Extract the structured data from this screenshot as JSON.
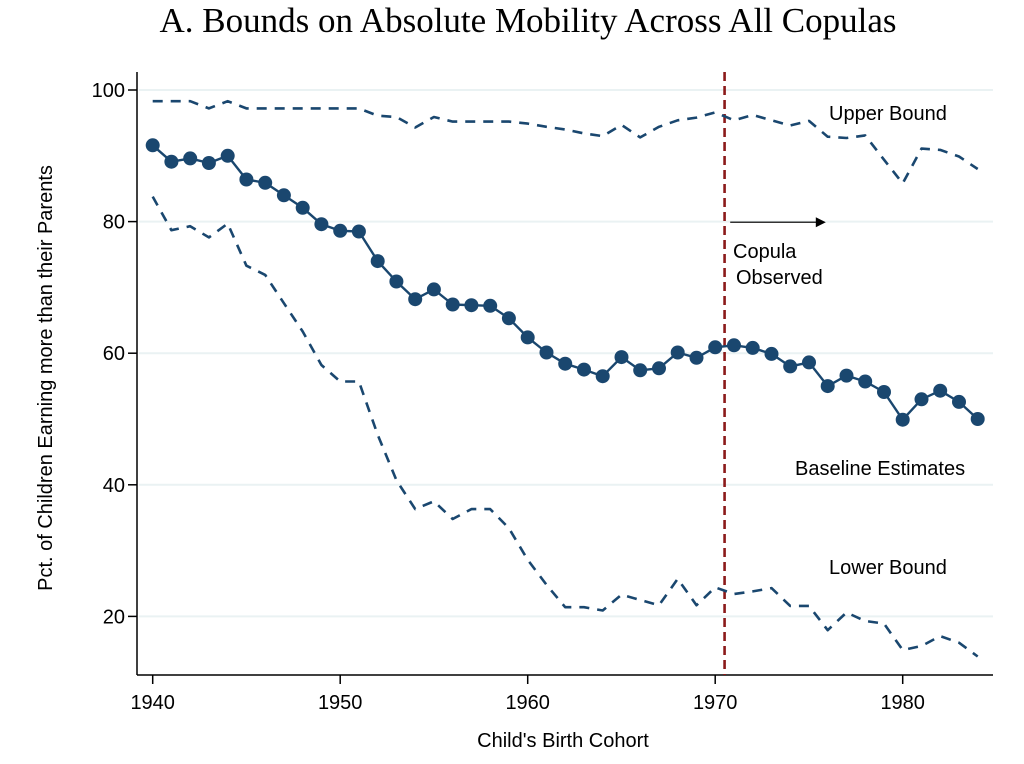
{
  "chart_data": {
    "type": "line",
    "title": "A. Bounds on Absolute Mobility Across All Copulas",
    "xlabel": "Child's Birth Cohort",
    "ylabel": "Pct. of Children Earning more than their Parents",
    "xlim": [
      1939.2,
      1985
    ],
    "ylim": [
      11,
      102.5
    ],
    "x_ticks": [
      1940,
      1950,
      1960,
      1970,
      1980
    ],
    "y_ticks": [
      20,
      40,
      60,
      80,
      100
    ],
    "grid": "horizontal",
    "x": [
      1940,
      1941,
      1942,
      1943,
      1944,
      1945,
      1946,
      1947,
      1948,
      1949,
      1950,
      1951,
      1952,
      1953,
      1954,
      1955,
      1956,
      1957,
      1958,
      1959,
      1960,
      1961,
      1962,
      1963,
      1964,
      1965,
      1966,
      1967,
      1968,
      1969,
      1970,
      1971,
      1972,
      1973,
      1974,
      1975,
      1976,
      1977,
      1978,
      1979,
      1980,
      1981,
      1982,
      1983,
      1984
    ],
    "series": [
      {
        "name": "Upper Bound",
        "style": "dashed",
        "color": "#1a476f",
        "values": [
          98.3,
          98.3,
          98.3,
          97.2,
          98.3,
          97.2,
          97.2,
          97.2,
          97.2,
          97.2,
          97.2,
          97.2,
          96.1,
          95.9,
          94.3,
          95.9,
          95.2,
          95.2,
          95.2,
          95.2,
          94.9,
          94.4,
          94.0,
          93.4,
          93.0,
          94.7,
          92.8,
          94.4,
          95.4,
          95.8,
          96.6,
          95.4,
          96.2,
          95.4,
          94.6,
          95.3,
          92.9,
          92.7,
          93.1,
          89.4,
          85.8,
          91.1,
          90.9,
          89.9,
          88.0
        ]
      },
      {
        "name": "Baseline Estimates",
        "style": "solid-with-markers",
        "color": "#1a476f",
        "values": [
          91.6,
          89.1,
          89.6,
          88.9,
          90.0,
          86.4,
          85.9,
          84.0,
          82.1,
          79.6,
          78.6,
          78.5,
          74.0,
          70.9,
          68.2,
          69.7,
          67.4,
          67.3,
          67.2,
          65.3,
          62.4,
          60.1,
          58.4,
          57.5,
          56.5,
          59.4,
          57.4,
          57.7,
          60.1,
          59.3,
          60.9,
          61.2,
          60.8,
          59.9,
          58.0,
          58.6,
          55.0,
          56.6,
          55.7,
          54.1,
          49.9,
          53.0,
          54.3,
          52.6,
          50.0
        ]
      },
      {
        "name": "Lower Bound",
        "style": "dashed",
        "color": "#1a476f",
        "values": [
          83.8,
          78.7,
          79.3,
          77.6,
          79.7,
          73.3,
          71.9,
          67.6,
          63.3,
          58.2,
          55.7,
          55.7,
          47.6,
          40.7,
          36.3,
          37.5,
          34.8,
          36.3,
          36.3,
          33.4,
          28.6,
          24.8,
          21.4,
          21.4,
          20.9,
          23.3,
          22.5,
          21.7,
          25.7,
          21.7,
          24.4,
          23.4,
          23.8,
          24.3,
          21.6,
          21.6,
          17.9,
          20.6,
          19.3,
          18.9,
          14.9,
          15.5,
          17.0,
          16.0,
          13.9
        ]
      }
    ],
    "vertical_line": {
      "x": 1970.5,
      "color": "#8b1a1a",
      "style": "dashed"
    },
    "annotations": [
      {
        "text": "Upper Bound",
        "x": 1976.5,
        "y": 97.0
      },
      {
        "text": "Baseline Estimates",
        "x": 1974.7,
        "y": 28.0
      },
      {
        "text": "Lower Bound",
        "x": 1976.5,
        "y": 28.0,
        "ref": "lower"
      },
      {
        "text": "Copula",
        "x": 1970.5,
        "y": 74.2
      },
      {
        "text": "Observed",
        "x": 1970.7,
        "y": 70.2
      }
    ],
    "arrow": {
      "from_x": 1970.8,
      "to_x": 1975.9,
      "y": 79.9,
      "label": "Copula Observed"
    },
    "legend": "none (inline labels)"
  }
}
